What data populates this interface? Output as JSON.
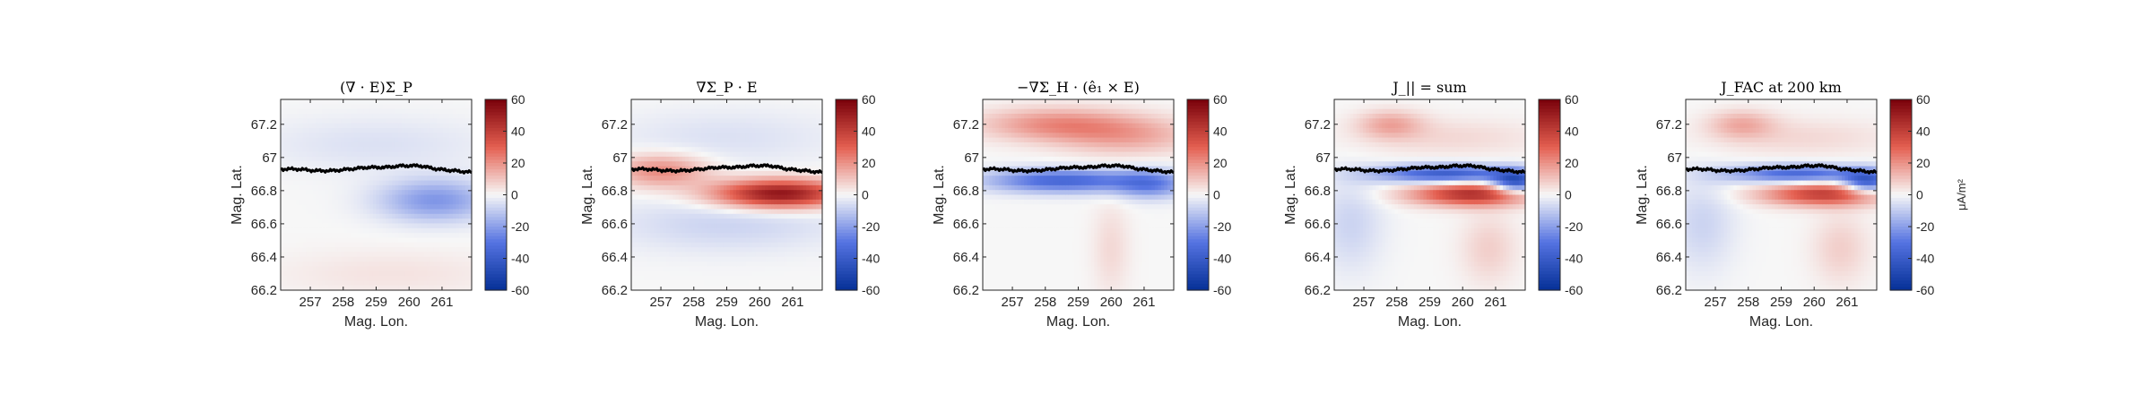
{
  "figure": {
    "colorbar_unit_label": "μA/m²"
  },
  "chart_data": [
    {
      "type": "heatmap",
      "title": "(∇ · E)Σ_P",
      "xlabel": "Mag. Lon.",
      "ylabel": "Mag. Lat.",
      "xlim": [
        256.1,
        261.9
      ],
      "ylim": [
        66.2,
        67.35
      ],
      "xticks": [
        257,
        258,
        259,
        260,
        261
      ],
      "yticks": [
        66.2,
        66.4,
        66.6,
        66.8,
        67,
        67.2
      ],
      "xtick_labels": [
        "257",
        "258",
        "259",
        "260",
        "261"
      ],
      "ytick_labels": [
        "66.2",
        "66.4",
        "66.6",
        "66.8",
        "67",
        "67.2"
      ],
      "colorbar": {
        "min": -60,
        "max": 60,
        "ticks": [
          60,
          40,
          20,
          0,
          -20,
          -40,
          -60
        ],
        "tick_labels": [
          "60",
          "40",
          "20",
          "0",
          "-20",
          "-40",
          "-60"
        ]
      },
      "boundary_line_lat": [
        66.93,
        66.93,
        66.92,
        66.92,
        66.93,
        66.94,
        66.94,
        66.95,
        66.95,
        66.93,
        66.92,
        66.91
      ],
      "features": [
        {
          "lon": 260.8,
          "lat": 66.74,
          "sigma_lon": 1.2,
          "sigma_lat": 0.09,
          "value": -22
        },
        {
          "lon": 259.0,
          "lat": 67.08,
          "sigma_lon": 2.5,
          "sigma_lat": 0.12,
          "value": -5
        },
        {
          "lon": 259.5,
          "lat": 66.3,
          "sigma_lon": 2.5,
          "sigma_lat": 0.1,
          "value": 4
        }
      ]
    },
    {
      "type": "heatmap",
      "title": "∇Σ_P · E",
      "xlabel": "Mag. Lon.",
      "ylabel": "Mag. Lat.",
      "xlim": [
        256.1,
        261.9
      ],
      "ylim": [
        66.2,
        67.35
      ],
      "xticks": [
        257,
        258,
        259,
        260,
        261
      ],
      "yticks": [
        66.2,
        66.4,
        66.6,
        66.8,
        67,
        67.2
      ],
      "xtick_labels": [
        "257",
        "258",
        "259",
        "260",
        "261"
      ],
      "ytick_labels": [
        "66.2",
        "66.4",
        "66.6",
        "66.8",
        "67",
        "67.2"
      ],
      "colorbar": {
        "min": -60,
        "max": 60,
        "ticks": [
          60,
          40,
          20,
          0,
          -20,
          -40,
          -60
        ],
        "tick_labels": [
          "60",
          "40",
          "20",
          "0",
          "-20",
          "-40",
          "-60"
        ]
      },
      "boundary_line_lat": [
        66.93,
        66.93,
        66.92,
        66.92,
        66.93,
        66.94,
        66.94,
        66.95,
        66.95,
        66.93,
        66.92,
        66.91
      ],
      "features": [
        {
          "lon": 260.6,
          "lat": 66.78,
          "sigma_lon": 1.4,
          "sigma_lat": 0.06,
          "value": 55
        },
        {
          "lon": 257.0,
          "lat": 66.92,
          "sigma_lon": 1.0,
          "sigma_lat": 0.07,
          "value": 22
        },
        {
          "lon": 259.0,
          "lat": 66.6,
          "sigma_lon": 2.5,
          "sigma_lat": 0.12,
          "value": -8
        },
        {
          "lon": 259.0,
          "lat": 67.12,
          "sigma_lon": 2.5,
          "sigma_lat": 0.12,
          "value": -5
        }
      ]
    },
    {
      "type": "heatmap",
      "title": "−∇Σ_H · (ê₁ × E)",
      "xlabel": "Mag. Lon.",
      "ylabel": "Mag. Lat.",
      "xlim": [
        256.1,
        261.9
      ],
      "ylim": [
        66.2,
        67.35
      ],
      "xticks": [
        257,
        258,
        259,
        260,
        261
      ],
      "yticks": [
        66.2,
        66.4,
        66.6,
        66.8,
        67,
        67.2
      ],
      "xtick_labels": [
        "257",
        "258",
        "259",
        "260",
        "261"
      ],
      "ytick_labels": [
        "66.2",
        "66.4",
        "66.6",
        "66.8",
        "67",
        "67.2"
      ],
      "colorbar": {
        "min": -60,
        "max": 60,
        "ticks": [
          60,
          40,
          20,
          0,
          -20,
          -40,
          -60
        ],
        "tick_labels": [
          "60",
          "40",
          "20",
          "0",
          "-20",
          "-40",
          "-60"
        ]
      },
      "boundary_line_lat": [
        66.93,
        66.93,
        66.92,
        66.92,
        66.93,
        66.94,
        66.94,
        66.95,
        66.95,
        66.93,
        66.92,
        66.91
      ],
      "features": [
        {
          "lon": 258.5,
          "lat": 66.86,
          "sigma_lon": 1.6,
          "sigma_lat": 0.05,
          "value": -35
        },
        {
          "lon": 261.2,
          "lat": 66.84,
          "sigma_lon": 0.8,
          "sigma_lat": 0.06,
          "value": -25
        },
        {
          "lon": 258.3,
          "lat": 67.2,
          "sigma_lon": 1.6,
          "sigma_lat": 0.07,
          "value": 20
        },
        {
          "lon": 260.5,
          "lat": 67.13,
          "sigma_lon": 1.5,
          "sigma_lat": 0.08,
          "value": 15
        },
        {
          "lon": 260.0,
          "lat": 66.45,
          "sigma_lon": 0.4,
          "sigma_lat": 0.2,
          "value": 6
        }
      ]
    },
    {
      "type": "heatmap",
      "title": "J_|| = sum",
      "xlabel": "Mag. Lon.",
      "ylabel": "Mag. Lat.",
      "xlim": [
        256.1,
        261.9
      ],
      "ylim": [
        66.2,
        67.35
      ],
      "xticks": [
        257,
        258,
        259,
        260,
        261
      ],
      "yticks": [
        66.2,
        66.4,
        66.6,
        66.8,
        67,
        67.2
      ],
      "xtick_labels": [
        "257",
        "258",
        "259",
        "260",
        "261"
      ],
      "ytick_labels": [
        "66.2",
        "66.4",
        "66.6",
        "66.8",
        "67",
        "67.2"
      ],
      "colorbar": {
        "min": -60,
        "max": 60,
        "ticks": [
          60,
          40,
          20,
          0,
          -20,
          -40,
          -60
        ],
        "tick_labels": [
          "60",
          "40",
          "20",
          "0",
          "-20",
          "-40",
          "-60"
        ]
      },
      "boundary_line_lat": [
        66.93,
        66.93,
        66.92,
        66.92,
        66.93,
        66.94,
        66.94,
        66.95,
        66.95,
        66.93,
        66.92,
        66.91
      ],
      "features": [
        {
          "lon": 260.3,
          "lat": 66.78,
          "sigma_lon": 1.3,
          "sigma_lat": 0.05,
          "value": 45
        },
        {
          "lon": 259.5,
          "lat": 66.9,
          "sigma_lon": 1.5,
          "sigma_lat": 0.04,
          "value": -40
        },
        {
          "lon": 261.6,
          "lat": 66.85,
          "sigma_lon": 0.5,
          "sigma_lat": 0.05,
          "value": -45
        },
        {
          "lon": 257.8,
          "lat": 67.2,
          "sigma_lon": 0.7,
          "sigma_lat": 0.06,
          "value": 15
        },
        {
          "lon": 259.6,
          "lat": 67.12,
          "sigma_lon": 2.0,
          "sigma_lat": 0.08,
          "value": 6
        },
        {
          "lon": 256.6,
          "lat": 66.6,
          "sigma_lon": 0.7,
          "sigma_lat": 0.2,
          "value": -8
        },
        {
          "lon": 260.8,
          "lat": 66.45,
          "sigma_lon": 0.6,
          "sigma_lat": 0.15,
          "value": 8
        }
      ]
    },
    {
      "type": "heatmap",
      "title": "J_FAC at 200 km",
      "xlabel": "Mag. Lon.",
      "ylabel": "Mag. Lat.",
      "xlim": [
        256.1,
        261.9
      ],
      "ylim": [
        66.2,
        67.35
      ],
      "xticks": [
        257,
        258,
        259,
        260,
        261
      ],
      "yticks": [
        66.2,
        66.4,
        66.6,
        66.8,
        67,
        67.2
      ],
      "xtick_labels": [
        "257",
        "258",
        "259",
        "260",
        "261"
      ],
      "ytick_labels": [
        "66.2",
        "66.4",
        "66.6",
        "66.8",
        "67",
        "67.2"
      ],
      "colorbar": {
        "min": -60,
        "max": 60,
        "ticks": [
          60,
          40,
          20,
          0,
          -20,
          -40,
          -60
        ],
        "tick_labels": [
          "60",
          "40",
          "20",
          "0",
          "-20",
          "-40",
          "-60"
        ]
      },
      "boundary_line_lat": [
        66.93,
        66.93,
        66.92,
        66.92,
        66.93,
        66.94,
        66.94,
        66.95,
        66.95,
        66.93,
        66.92,
        66.91
      ],
      "features": [
        {
          "lon": 260.3,
          "lat": 66.78,
          "sigma_lon": 1.3,
          "sigma_lat": 0.05,
          "value": 40
        },
        {
          "lon": 259.5,
          "lat": 66.9,
          "sigma_lon": 1.5,
          "sigma_lat": 0.04,
          "value": -35
        },
        {
          "lon": 261.6,
          "lat": 66.85,
          "sigma_lon": 0.5,
          "sigma_lat": 0.05,
          "value": -40
        },
        {
          "lon": 257.8,
          "lat": 67.2,
          "sigma_lon": 0.7,
          "sigma_lat": 0.06,
          "value": 14
        },
        {
          "lon": 259.6,
          "lat": 67.12,
          "sigma_lon": 2.0,
          "sigma_lat": 0.08,
          "value": 6
        },
        {
          "lon": 256.6,
          "lat": 66.6,
          "sigma_lon": 0.7,
          "sigma_lat": 0.2,
          "value": -8
        },
        {
          "lon": 260.8,
          "lat": 66.45,
          "sigma_lon": 0.6,
          "sigma_lat": 0.15,
          "value": 8
        }
      ]
    }
  ]
}
